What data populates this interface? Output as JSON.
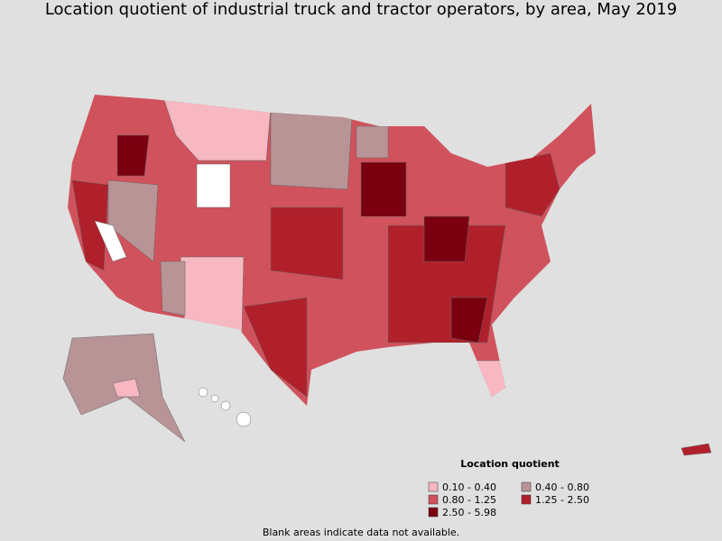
{
  "title": "Location quotient of industrial truck and tractor operators, by area, May 2019",
  "legend": {
    "title": "Location quotient",
    "items": [
      {
        "label": "0.10 - 0.40",
        "color": "#f7b8c2"
      },
      {
        "label": "0.40 - 0.80",
        "color": "#b89497"
      },
      {
        "label": "0.80 - 1.25",
        "color": "#d0525c"
      },
      {
        "label": "1.25 - 2.50",
        "color": "#b0202b"
      },
      {
        "label": "2.50 - 5.98",
        "color": "#7a0010"
      }
    ]
  },
  "note": "Blank areas indicate data not available."
}
